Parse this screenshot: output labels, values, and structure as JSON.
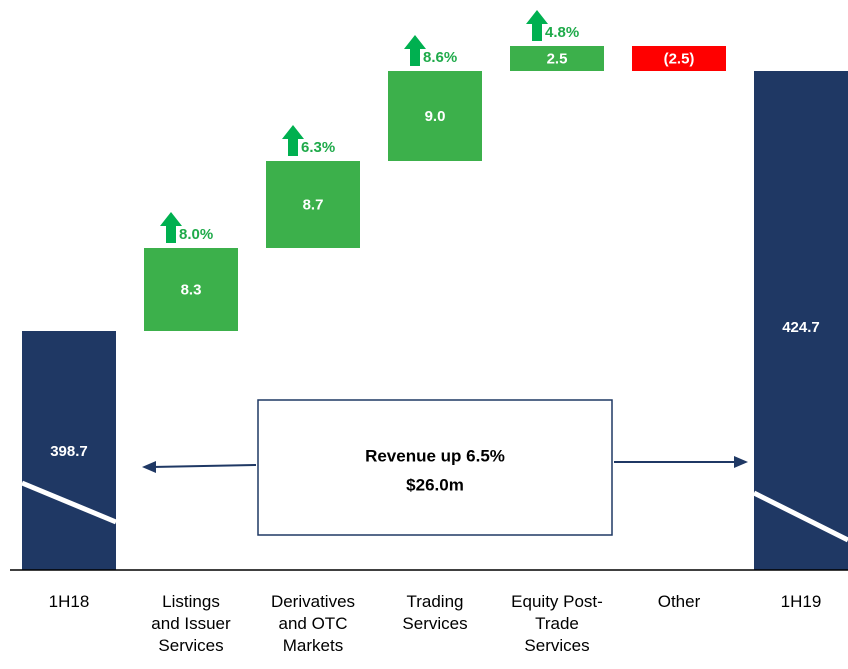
{
  "chart_data": {
    "type": "waterfall",
    "categories": [
      "1H18",
      "Listings\nand Issuer\nServices",
      "Derivatives\nand OTC\nMarkets",
      "Trading\nServices",
      "Equity Post-\nTrade\nServices",
      "Other",
      "1H19"
    ],
    "values": [
      398.7,
      8.3,
      8.7,
      9.0,
      2.5,
      -2.5,
      424.7
    ],
    "value_labels": [
      "398.7",
      "8.3",
      "8.7",
      "9.0",
      "2.5",
      "(2.5)",
      "424.7"
    ],
    "growth": [
      null,
      8.0,
      6.3,
      8.6,
      4.8,
      null,
      null
    ],
    "growth_labels": [
      null,
      "8.0%",
      "6.3%",
      "8.6%",
      "4.8%",
      null,
      null
    ],
    "color_total": "#1f3864",
    "color_increase": "#3cb04b",
    "color_decrease": "#ff0000",
    "growth_color": "#1faa4a",
    "annotation": [
      "Revenue up 6.5%",
      "$26.0m"
    ]
  }
}
